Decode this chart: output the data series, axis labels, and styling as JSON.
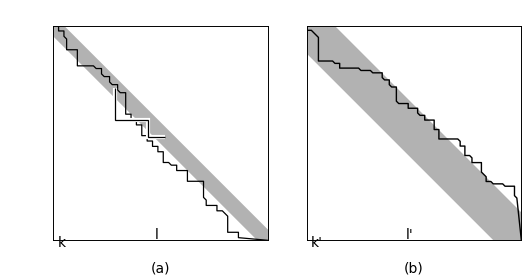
{
  "fig_width": 5.32,
  "fig_height": 2.77,
  "dpi": 100,
  "panel_a": {
    "label_x": "l",
    "label_y": "k",
    "caption": "(a)",
    "band_half": 0.05,
    "band_color": "#b2b2b2",
    "bg_color": "#ffffff"
  },
  "panel_b": {
    "label_x": "l'",
    "label_y": "k'",
    "caption": "(b)",
    "band_half": 0.13,
    "band_color": "#b2b2b2",
    "bg_color": "#ffffff"
  }
}
